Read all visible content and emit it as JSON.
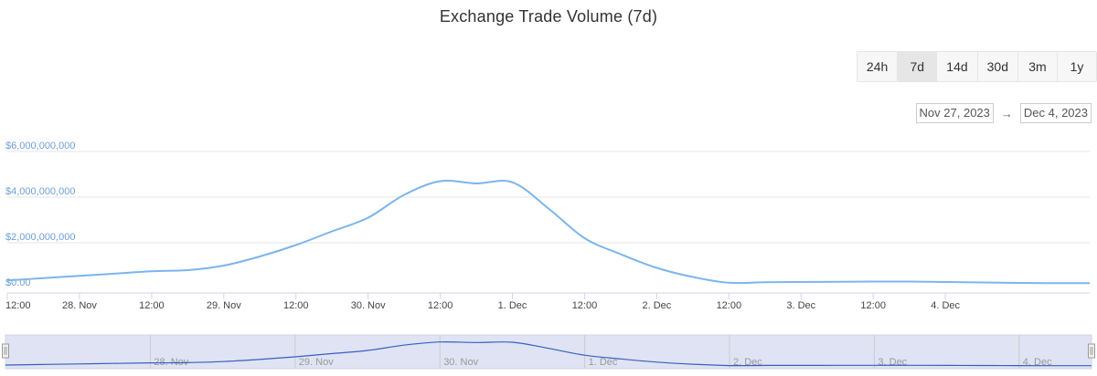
{
  "header": {
    "title": "Exchange Trade Volume (7d)"
  },
  "range_buttons": [
    {
      "label": "24h",
      "active": false
    },
    {
      "label": "7d",
      "active": true
    },
    {
      "label": "14d",
      "active": false
    },
    {
      "label": "30d",
      "active": false
    },
    {
      "label": "3m",
      "active": false
    },
    {
      "label": "1y",
      "active": false
    }
  ],
  "date_range": {
    "from": "Nov 27, 2023",
    "arrow": "→",
    "to": "Dec 4, 2023"
  },
  "colors": {
    "line": "#7cb5ec",
    "navigator_line": "#3a5fbf",
    "navigator_fill": "#dfe3f3"
  },
  "chart_data": {
    "type": "line",
    "title": "Exchange Trade Volume (7d)",
    "xlabel": "",
    "ylabel": "",
    "ylim": [
      0,
      6000000000
    ],
    "xlim": [
      0,
      7.5
    ],
    "y_ticks": [
      "$0.00",
      "$2,000,000,000",
      "$4,000,000,000",
      "$6,000,000,000"
    ],
    "x_ticks": [
      "12:00",
      "28. Nov",
      "12:00",
      "29. Nov",
      "12:00",
      "30. Nov",
      "12:00",
      "1. Dec",
      "12:00",
      "2. Dec",
      "12:00",
      "3. Dec",
      "12:00",
      "4. Dec"
    ],
    "navigator_labels": [
      "28. Nov",
      "29. Nov",
      "30. Nov",
      "1. Dec",
      "2. Dec",
      "3. Dec",
      "4. Dec"
    ],
    "grid": true,
    "series": [
      {
        "x": [
          0,
          0.25,
          0.5,
          0.75,
          1.0,
          1.25,
          1.5,
          1.75,
          2.0,
          2.25,
          2.5,
          2.75,
          3.0,
          3.25,
          3.5,
          3.75,
          4.0,
          4.25,
          4.5,
          4.75,
          5.0,
          5.25,
          5.5,
          5.75,
          6.0,
          6.25,
          6.5,
          6.75,
          7.0,
          7.25,
          7.5
        ],
        "values": [
          350000000,
          450000000,
          550000000,
          650000000,
          750000000,
          800000000,
          1000000000,
          1400000000,
          1900000000,
          2500000000,
          3100000000,
          4100000000,
          4700000000,
          4600000000,
          4650000000,
          3500000000,
          2200000000,
          1500000000,
          900000000,
          500000000,
          250000000,
          270000000,
          280000000,
          290000000,
          300000000,
          300000000,
          280000000,
          260000000,
          240000000,
          230000000,
          230000000
        ]
      }
    ]
  }
}
